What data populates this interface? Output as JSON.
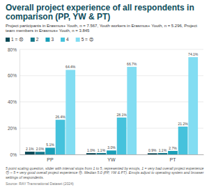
{
  "chart_data": {
    "type": "bar",
    "title": "Overall project experience of all respondents in comparison (PP, YW & PT)",
    "subtitle": "Project participants in Erasmus+ Youth, n = 7.567, Youth workers in Erasmus+ Youth, n = 5.296, Project team members in Erasmus+ Youth, n = 3.845",
    "categories": [
      "PP",
      "YW",
      "PT"
    ],
    "series": [
      {
        "name": "1 = 😞",
        "color": "#0c4a57",
        "values": [
          2.1,
          1.0,
          0.9
        ],
        "value_labels": [
          "2.1%",
          "1.0%",
          "0.9%"
        ]
      },
      {
        "name": "2",
        "color": "#17788a",
        "values": [
          2.0,
          1.1,
          1.1
        ],
        "value_labels": [
          "2.0%",
          "1.1%",
          "1.1%"
        ]
      },
      {
        "name": "3",
        "color": "#1a9fb8",
        "values": [
          5.1,
          3.0,
          2.7
        ],
        "value_labels": [
          "5.1%",
          "3.0%",
          "2.7%"
        ]
      },
      {
        "name": "4",
        "color": "#45c2dc",
        "values": [
          26.4,
          28.1,
          21.2
        ],
        "value_labels": [
          "26.4%",
          "28.1%",
          "21.2%"
        ]
      },
      {
        "name": "5 = 😍",
        "color": "#82ddf2",
        "values": [
          64.4,
          66.7,
          74.1
        ],
        "value_labels": [
          "64.4%",
          "66.7%",
          "74.1%"
        ]
      }
    ],
    "ylim": [
      0,
      80
    ],
    "yticks": [
      {
        "value": 0,
        "label": "0%"
      },
      {
        "value": 20,
        "label": "20%"
      },
      {
        "value": 40,
        "label": "40%"
      },
      {
        "value": 60,
        "label": "60%"
      },
      {
        "value": 80,
        "label": "80%"
      }
    ],
    "grid": true,
    "legend": "top",
    "data_labels": true,
    "note": "5 point scaling question, slider with interval stops from 1 to 5, represented by emojis, 1 = very bad overall project experience 😞 – 5 = very good overall project experience 😍. Median 5.0 (PP, YW & PT). Emojis adjust to operating system and browser settings of respondents.",
    "source": "Source: RAY Transnational Dataset (2024)"
  }
}
